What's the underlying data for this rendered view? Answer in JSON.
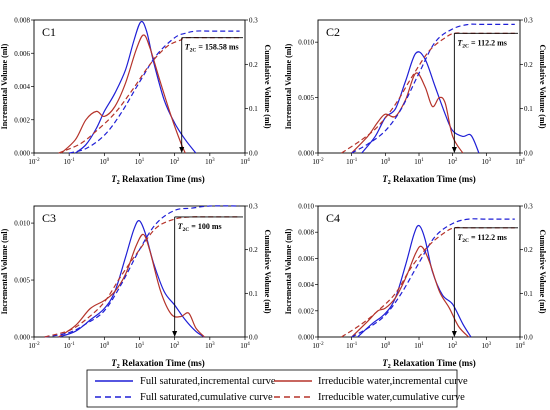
{
  "figure": {
    "x_axis_label_main": "T",
    "x_axis_label_sub": "2",
    "x_axis_label_rest": " Relaxation Time (ms)"
  },
  "legend": [
    {
      "label": "Full saturated,incremental curve",
      "color": "#1f1fd6",
      "style": "solid"
    },
    {
      "label": "Irreducible water,incremental curve",
      "color": "#b5332a",
      "style": "solid"
    },
    {
      "label": "Full saturated,cumulative curve",
      "color": "#1f1fd6",
      "style": "dashed"
    },
    {
      "label": "Irreducible water,cumulative curve",
      "color": "#b5332a",
      "style": "dashed"
    }
  ],
  "colors": {
    "full": "#1f1fd6",
    "irr": "#b5332a"
  },
  "chart_data": [
    {
      "type": "line",
      "panel": "C1",
      "ylabel_left": "Incremental Volume (ml)",
      "ylabel_right": "Cumulative Volume (ml)",
      "xlabel": "T2 Relaxation Time (ms)",
      "xscale": "log",
      "xlim": [
        0.01,
        10000
      ],
      "ylim_left": [
        0,
        0.008
      ],
      "yticks_left": [
        "0.000",
        "0.002",
        "0.004",
        "0.006",
        "0.008"
      ],
      "ylim_right": [
        0,
        0.3
      ],
      "yticks_right": [
        "0.0",
        "0.1",
        "0.2",
        "0.3"
      ],
      "annotation": {
        "main": "T",
        "sub": "2C",
        "rest": " = 158.58 ms",
        "x": 158.58
      },
      "series": [
        {
          "key": "full_inc",
          "axis": "left",
          "x": [
            0.15,
            0.3,
            0.6,
            1,
            2,
            4,
            7,
            11,
            16,
            25,
            50,
            100,
            200,
            400
          ],
          "y": [
            0,
            0.0005,
            0.0015,
            0.0025,
            0.0036,
            0.005,
            0.0068,
            0.0079,
            0.0073,
            0.0055,
            0.0032,
            0.0018,
            0.0008,
            0
          ]
        },
        {
          "key": "irr_inc",
          "axis": "left",
          "x": [
            0.06,
            0.15,
            0.3,
            0.6,
            1,
            2,
            4,
            8,
            13,
            20,
            40,
            80,
            150,
            200
          ],
          "y": [
            0,
            0.0008,
            0.002,
            0.0025,
            0.0022,
            0.0028,
            0.0042,
            0.0062,
            0.0071,
            0.0063,
            0.0042,
            0.0022,
            0.0006,
            0
          ]
        },
        {
          "key": "full_cum",
          "axis": "right",
          "x": [
            0.1,
            0.3,
            1,
            3,
            10,
            30,
            100,
            200,
            400,
            1000,
            7000
          ],
          "y": [
            0,
            0.01,
            0.04,
            0.09,
            0.16,
            0.22,
            0.26,
            0.27,
            0.275,
            0.275,
            0.275
          ]
        },
        {
          "key": "irr_cum",
          "axis": "right",
          "x": [
            0.05,
            0.2,
            0.6,
            2,
            6,
            20,
            60,
            150,
            200,
            1000,
            7000
          ],
          "y": [
            0,
            0.02,
            0.05,
            0.09,
            0.14,
            0.2,
            0.24,
            0.255,
            0.26,
            0.26,
            0.26
          ]
        }
      ]
    },
    {
      "type": "line",
      "panel": "C2",
      "ylabel_left": "Incremental Volume (ml)",
      "ylabel_right": "Cumulative Volume (ml)",
      "xlabel": "T2 Relaxation Time (ms)",
      "xscale": "log",
      "xlim": [
        0.01,
        10000
      ],
      "ylim_left": [
        0,
        0.012
      ],
      "yticks_left": [
        "0.000",
        "0.005",
        "0.010"
      ],
      "ylim_right": [
        0,
        0.3
      ],
      "yticks_right": [
        "0.0",
        "0.1",
        "0.2",
        "0.3"
      ],
      "annotation": {
        "main": "T",
        "sub": "2C",
        "rest": " = 112.2 ms",
        "x": 112.2
      },
      "series": [
        {
          "key": "full_inc",
          "axis": "left",
          "x": [
            0.2,
            0.5,
            1,
            2,
            4,
            8,
            15,
            30,
            60,
            100,
            200,
            350,
            600
          ],
          "y": [
            0,
            0.0015,
            0.0032,
            0.004,
            0.0065,
            0.009,
            0.0085,
            0.006,
            0.0035,
            0.002,
            0.0015,
            0.0016,
            0
          ]
        },
        {
          "key": "irr_inc",
          "axis": "left",
          "x": [
            0.1,
            0.3,
            0.6,
            1,
            2,
            4,
            8,
            15,
            25,
            40,
            60,
            100,
            200
          ],
          "y": [
            0,
            0.0015,
            0.0028,
            0.0035,
            0.0033,
            0.0048,
            0.0072,
            0.006,
            0.0042,
            0.005,
            0.0045,
            0.0015,
            0
          ]
        },
        {
          "key": "full_cum",
          "axis": "right",
          "x": [
            0.1,
            0.3,
            1,
            3,
            10,
            30,
            100,
            300,
            700,
            7000
          ],
          "y": [
            0,
            0.02,
            0.05,
            0.1,
            0.18,
            0.25,
            0.28,
            0.29,
            0.29,
            0.29
          ]
        },
        {
          "key": "irr_cum",
          "axis": "right",
          "x": [
            0.05,
            0.2,
            0.6,
            2,
            6,
            20,
            60,
            112,
            300,
            7000
          ],
          "y": [
            0,
            0.03,
            0.06,
            0.11,
            0.17,
            0.23,
            0.26,
            0.27,
            0.27,
            0.27
          ]
        }
      ]
    },
    {
      "type": "line",
      "panel": "C3",
      "ylabel_left": "Incremental Volume (ml)",
      "ylabel_right": "Cumulative Volume (ml)",
      "xlabel": "T2 Relaxation Time (ms)",
      "xscale": "log",
      "xlim": [
        0.01,
        10000
      ],
      "ylim_left": [
        0,
        0.0115
      ],
      "yticks_left": [
        "0.000",
        "0.005",
        "0.010"
      ],
      "ylim_right": [
        0,
        0.3
      ],
      "yticks_right": [
        "0.0",
        "0.1",
        "0.2",
        "0.3"
      ],
      "annotation": {
        "main": "T",
        "sub": "2C",
        "rest": " = 100 ms",
        "x": 100
      },
      "series": [
        {
          "key": "full_inc",
          "axis": "left",
          "x": [
            0.05,
            0.15,
            0.4,
            1,
            2,
            4,
            7,
            10,
            15,
            25,
            50,
            100,
            200,
            400,
            700
          ],
          "y": [
            0,
            0.0005,
            0.0015,
            0.0025,
            0.004,
            0.007,
            0.0095,
            0.0102,
            0.009,
            0.0065,
            0.004,
            0.0028,
            0.0015,
            0.0005,
            0
          ]
        },
        {
          "key": "irr_inc",
          "axis": "left",
          "x": [
            0.05,
            0.15,
            0.4,
            1,
            2,
            4,
            8,
            13,
            20,
            40,
            80,
            150,
            250,
            400,
            700
          ],
          "y": [
            0,
            0.001,
            0.0025,
            0.0032,
            0.004,
            0.0055,
            0.008,
            0.009,
            0.0075,
            0.004,
            0.002,
            0.0018,
            0.0021,
            0.0008,
            0
          ]
        },
        {
          "key": "full_cum",
          "axis": "right",
          "x": [
            0.02,
            0.1,
            0.3,
            1,
            3,
            10,
            30,
            100,
            300,
            1000,
            7000
          ],
          "y": [
            0,
            0.01,
            0.03,
            0.06,
            0.12,
            0.2,
            0.26,
            0.29,
            0.295,
            0.3,
            0.3
          ]
        },
        {
          "key": "irr_cum",
          "axis": "right",
          "x": [
            0.02,
            0.1,
            0.3,
            1,
            3,
            10,
            30,
            100,
            300,
            1000,
            7000
          ],
          "y": [
            0,
            0.015,
            0.04,
            0.08,
            0.14,
            0.2,
            0.25,
            0.27,
            0.275,
            0.275,
            0.275
          ]
        }
      ]
    },
    {
      "type": "line",
      "panel": "C4",
      "ylabel_left": "Incremental Volume (ml)",
      "ylabel_right": "Cumulative Volume (ml)",
      "xlabel": "T2 Relaxation Time (ms)",
      "xscale": "log",
      "xlim": [
        0.01,
        10000
      ],
      "ylim_left": [
        0,
        0.01
      ],
      "yticks_left": [
        "0.000",
        "0.002",
        "0.004",
        "0.006",
        "0.008",
        "0.010"
      ],
      "ylim_right": [
        0,
        0.3
      ],
      "yticks_right": [
        "0.0",
        "0.1",
        "0.2",
        "0.3"
      ],
      "annotation": {
        "main": "T",
        "sub": "2C",
        "rest": " = 112.2 ms",
        "x": 112.2
      },
      "series": [
        {
          "key": "full_inc",
          "axis": "left",
          "x": [
            0.15,
            0.4,
            1,
            2,
            4,
            7,
            10,
            15,
            25,
            50,
            100,
            200,
            350
          ],
          "y": [
            0,
            0.001,
            0.0018,
            0.003,
            0.0055,
            0.0078,
            0.0085,
            0.0075,
            0.005,
            0.0032,
            0.0025,
            0.001,
            0
          ]
        },
        {
          "key": "irr_inc",
          "axis": "left",
          "x": [
            0.1,
            0.3,
            0.6,
            1,
            2,
            4,
            8,
            12,
            20,
            40,
            80,
            150,
            300
          ],
          "y": [
            0,
            0.0012,
            0.002,
            0.0022,
            0.003,
            0.0045,
            0.0064,
            0.0069,
            0.0058,
            0.0035,
            0.0022,
            0.0008,
            0
          ]
        },
        {
          "key": "full_cum",
          "axis": "right",
          "x": [
            0.1,
            0.3,
            1,
            3,
            10,
            30,
            100,
            300,
            1000,
            7000
          ],
          "y": [
            0,
            0.02,
            0.05,
            0.1,
            0.17,
            0.23,
            0.26,
            0.27,
            0.27,
            0.27
          ]
        },
        {
          "key": "irr_cum",
          "axis": "right",
          "x": [
            0.05,
            0.2,
            0.6,
            2,
            6,
            20,
            60,
            112,
            300,
            7000
          ],
          "y": [
            0,
            0.03,
            0.06,
            0.1,
            0.16,
            0.21,
            0.24,
            0.25,
            0.25,
            0.25
          ]
        }
      ]
    }
  ]
}
